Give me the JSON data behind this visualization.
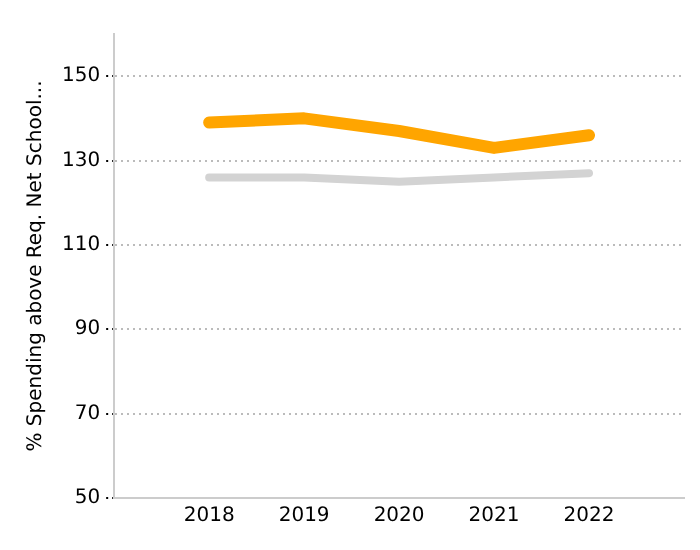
{
  "chart_data": {
    "type": "line",
    "ylabel": "% Spending above Req. Net School...",
    "x": [
      2018,
      2019,
      2020,
      2021,
      2022
    ],
    "xlim": [
      2017,
      2023
    ],
    "xticks": [
      2018,
      2019,
      2020,
      2021,
      2022
    ],
    "ylim": [
      50,
      160
    ],
    "yticks": [
      50,
      70,
      90,
      110,
      130,
      150
    ],
    "grid": "y",
    "line_style": "solid",
    "marker": "none",
    "series": [
      {
        "color": "#ffa500",
        "values": [
          139,
          140,
          137,
          133,
          136
        ]
      },
      {
        "color": "#d3d3d3",
        "values": [
          126,
          126,
          125,
          126,
          127
        ]
      }
    ]
  }
}
